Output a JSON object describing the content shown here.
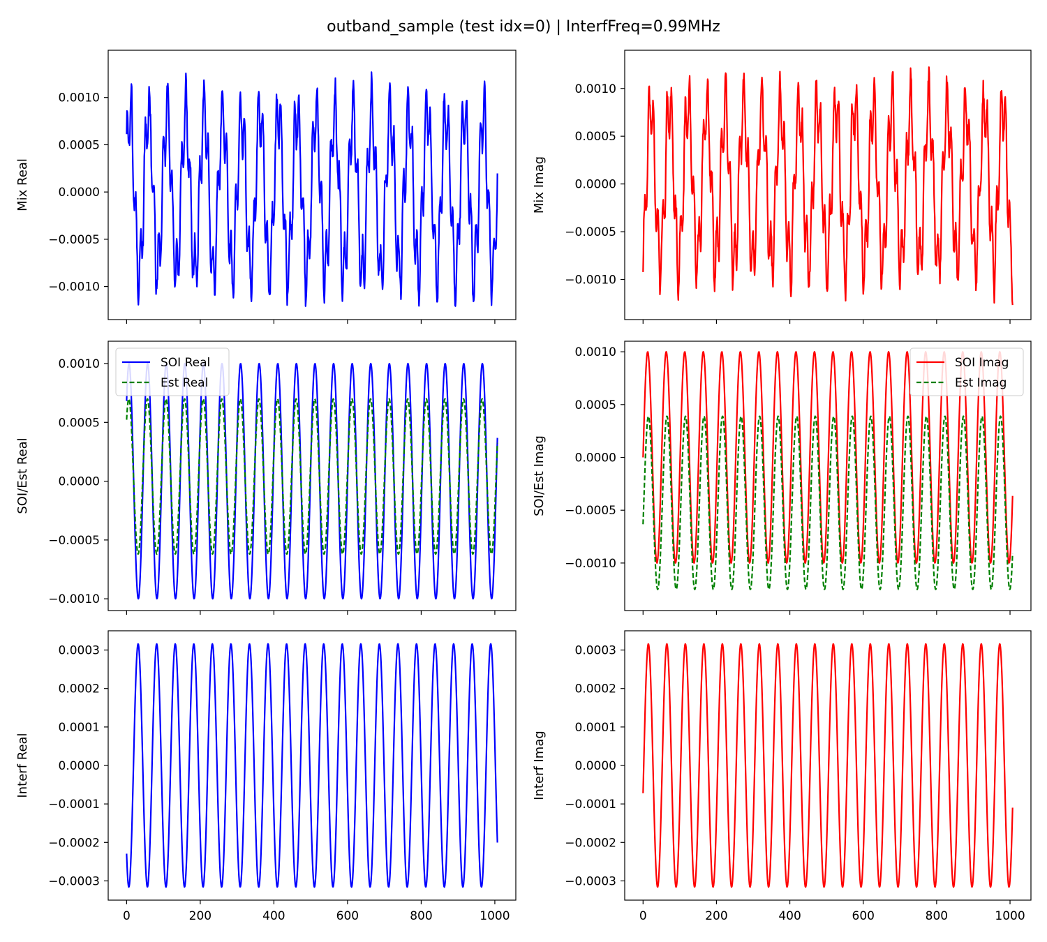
{
  "figure": {
    "title": "outband_sample (test idx=0) | InterfFreq=0.99MHz"
  },
  "chart_data": [
    {
      "id": "mix-real",
      "type": "line",
      "ylabel": "Mix Real",
      "xlim": [
        -50,
        1057
      ],
      "ylim": [
        -0.00135,
        0.0015
      ],
      "xticks": [
        0,
        200,
        400,
        600,
        800,
        1000
      ],
      "show_xticklabels": false,
      "yticks": [
        -0.001,
        -0.0005,
        0.0,
        0.0005,
        0.001
      ],
      "yticklabels": [
        "−0.0010",
        "−0.0005",
        "0.0000",
        "0.0005",
        "0.0010"
      ],
      "legend": null,
      "series": [
        {
          "kind": "mix",
          "color": "#0000ff",
          "style": "solid",
          "n": 1008,
          "soi": {
            "amp": 0.00085,
            "period": 50.5,
            "phase": 0.45
          },
          "interf": {
            "amp": 0.00032,
            "period": 12.3,
            "phase": 1.1
          },
          "noise": 9e-05,
          "seed": 3
        }
      ]
    },
    {
      "id": "mix-imag",
      "type": "line",
      "ylabel": "Mix Imag",
      "xlim": [
        -50,
        1057
      ],
      "ylim": [
        -0.00142,
        0.0014
      ],
      "xticks": [
        0,
        200,
        400,
        600,
        800,
        1000
      ],
      "show_xticklabels": false,
      "yticks": [
        -0.001,
        -0.0005,
        0.0,
        0.0005,
        0.001
      ],
      "yticklabels": [
        "−0.0010",
        "−0.0005",
        "0.0000",
        "0.0005",
        "0.0010"
      ],
      "legend": null,
      "series": [
        {
          "kind": "mix",
          "color": "#ff0000",
          "style": "solid",
          "n": 1008,
          "soi": {
            "amp": 0.00082,
            "period": 50.5,
            "phase": -1.1
          },
          "interf": {
            "amp": 0.00032,
            "period": 12.3,
            "phase": -0.4
          },
          "noise": 9e-05,
          "seed": 11
        }
      ]
    },
    {
      "id": "soi-est-real",
      "type": "line",
      "ylabel": "SOI/Est Real",
      "xlim": [
        -50,
        1057
      ],
      "ylim": [
        -0.0011,
        0.00119
      ],
      "xticks": [
        0,
        200,
        400,
        600,
        800,
        1000
      ],
      "show_xticklabels": false,
      "yticks": [
        -0.001,
        -0.0005,
        0.0,
        0.0005,
        0.001
      ],
      "yticklabels": [
        "−0.0010",
        "−0.0005",
        "0.0000",
        "0.0005",
        "0.0010"
      ],
      "legend": {
        "position": "upper-left",
        "entries": [
          "SOI Real",
          "Est Real"
        ]
      },
      "series": [
        {
          "name": "SOI Real",
          "kind": "sine",
          "color": "#0000ff",
          "style": "solid",
          "n": 1008,
          "amp": 0.001,
          "period": 50.5,
          "phase": 0.75,
          "offset": 0
        },
        {
          "name": "Est Real",
          "kind": "sine",
          "color": "#008000",
          "style": "dashed",
          "n": 1008,
          "amp": 0.00066,
          "period": 50.5,
          "phase": 0.82,
          "offset": 4e-05
        }
      ]
    },
    {
      "id": "soi-est-imag",
      "type": "line",
      "ylabel": "SOI/Est Imag",
      "xlim": [
        -50,
        1057
      ],
      "ylim": [
        -0.00145,
        0.0011
      ],
      "xticks": [
        0,
        200,
        400,
        600,
        800,
        1000
      ],
      "show_xticklabels": false,
      "yticks": [
        -0.001,
        -0.0005,
        0.0,
        0.0005,
        0.001
      ],
      "yticklabels": [
        "−0.0010",
        "−0.0005",
        "0.0000",
        "0.0005",
        "0.0010"
      ],
      "legend": {
        "position": "upper-right",
        "entries": [
          "SOI Imag",
          "Est Imag"
        ]
      },
      "series": [
        {
          "name": "SOI Imag",
          "kind": "sine",
          "color": "#ff0000",
          "style": "solid",
          "n": 1008,
          "amp": 0.001,
          "period": 50.5,
          "phase": 0.0,
          "offset": 0
        },
        {
          "name": "Est Imag",
          "kind": "sine",
          "color": "#008000",
          "style": "dashed",
          "n": 1008,
          "amp": 0.00082,
          "period": 50.5,
          "phase": -0.25,
          "offset": -0.00043
        }
      ]
    },
    {
      "id": "interf-real",
      "type": "line",
      "ylabel": "Interf Real",
      "xlim": [
        -50,
        1057
      ],
      "ylim": [
        -0.00035,
        0.00035
      ],
      "xticks": [
        0,
        200,
        400,
        600,
        800,
        1000
      ],
      "xticklabels": [
        "0",
        "200",
        "400",
        "600",
        "800",
        "1000"
      ],
      "show_xticklabels": true,
      "yticks": [
        -0.0003,
        -0.0002,
        -0.0001,
        0.0,
        0.0001,
        0.0002,
        0.0003
      ],
      "yticklabels": [
        "−0.0003",
        "−0.0002",
        "−0.0001",
        "0.0000",
        "0.0001",
        "0.0002",
        "0.0003"
      ],
      "legend": null,
      "series": [
        {
          "kind": "sine",
          "color": "#0000ff",
          "style": "solid",
          "n": 1008,
          "amp": 0.000316,
          "period": 50.4,
          "phase": -2.33,
          "offset": 0
        }
      ]
    },
    {
      "id": "interf-imag",
      "type": "line",
      "ylabel": "Interf Imag",
      "xlim": [
        -50,
        1057
      ],
      "ylim": [
        -0.00035,
        0.00035
      ],
      "xticks": [
        0,
        200,
        400,
        600,
        800,
        1000
      ],
      "xticklabels": [
        "0",
        "200",
        "400",
        "600",
        "800",
        "1000"
      ],
      "show_xticklabels": true,
      "yticks": [
        -0.0003,
        -0.0002,
        -0.0001,
        0.0,
        0.0001,
        0.0002,
        0.0003
      ],
      "yticklabels": [
        "−0.0003",
        "−0.0002",
        "−0.0001",
        "0.0000",
        "0.0001",
        "0.0002",
        "0.0003"
      ],
      "legend": null,
      "series": [
        {
          "kind": "sine",
          "color": "#ff0000",
          "style": "solid",
          "n": 1008,
          "amp": 0.000316,
          "period": 50.4,
          "phase": -0.23,
          "offset": 0
        }
      ]
    }
  ]
}
